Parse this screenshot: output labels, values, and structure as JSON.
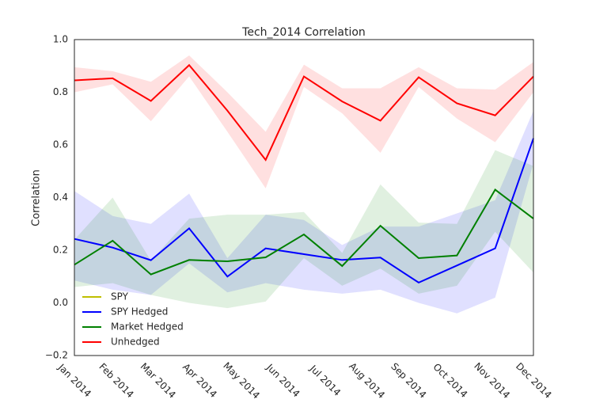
{
  "chart_data": {
    "type": "line",
    "title": "Tech_2014 Correlation",
    "y_label": "Correlation",
    "x": [
      0,
      1,
      2,
      3,
      4,
      5,
      6,
      7,
      8,
      9,
      10,
      11,
      12
    ],
    "xlim": [
      0,
      12
    ],
    "xticks": [
      {
        "value": 0,
        "label": "Jan 2014"
      },
      {
        "value": 1.09,
        "label": "Feb 2014"
      },
      {
        "value": 2.18,
        "label": "Mar 2014"
      },
      {
        "value": 3.27,
        "label": "Apr 2014"
      },
      {
        "value": 4.36,
        "label": "May 2014"
      },
      {
        "value": 5.45,
        "label": "Jun 2014"
      },
      {
        "value": 6.55,
        "label": "Jul 2014"
      },
      {
        "value": 7.64,
        "label": "Aug 2014"
      },
      {
        "value": 8.73,
        "label": "Sep 2014"
      },
      {
        "value": 9.82,
        "label": "Oct 2014"
      },
      {
        "value": 10.91,
        "label": "Nov 2014"
      },
      {
        "value": 12,
        "label": "Dec 2014"
      }
    ],
    "ylim": [
      -0.2,
      1.0
    ],
    "yticks": [
      {
        "value": -0.2,
        "label": "−0.2"
      },
      {
        "value": 0,
        "label": "0.0"
      },
      0.2,
      0.4,
      0.6,
      0.8,
      {
        "value": 1.0,
        "label": "1.0"
      }
    ],
    "grid": false,
    "legend": "lower left",
    "series": [
      {
        "name": "SPY",
        "color": "#bfbf00",
        "values": [
          null,
          null,
          null,
          null,
          null,
          null,
          null,
          null,
          null,
          null,
          null,
          null,
          null
        ]
      },
      {
        "name": "SPY Hedged",
        "color": "#0000ff",
        "values": [
          0.243,
          0.21,
          0.162,
          0.283,
          0.1,
          0.207,
          0.185,
          0.163,
          0.172,
          0.077,
          0.142,
          0.207,
          0.625
        ],
        "upper": [
          0.425,
          0.33,
          0.3,
          0.415,
          0.17,
          0.335,
          0.315,
          0.22,
          0.29,
          0.29,
          0.34,
          0.39,
          0.73
        ],
        "lower": [
          0.085,
          0.05,
          0.03,
          0.15,
          0.04,
          0.075,
          0.05,
          0.035,
          0.05,
          0.0,
          -0.04,
          0.02,
          0.53
        ]
      },
      {
        "name": "Market Hedged",
        "color": "#008000",
        "values": [
          0.145,
          0.236,
          0.108,
          0.163,
          0.158,
          0.173,
          0.26,
          0.14,
          0.293,
          0.17,
          0.18,
          0.43,
          0.32
        ],
        "upper": [
          0.24,
          0.4,
          0.16,
          0.32,
          0.335,
          0.335,
          0.345,
          0.19,
          0.45,
          0.305,
          0.3,
          0.58,
          0.52
        ],
        "lower": [
          0.06,
          0.075,
          0.03,
          0.0,
          -0.02,
          0.005,
          0.17,
          0.065,
          0.13,
          0.035,
          0.065,
          0.27,
          0.115
        ]
      },
      {
        "name": "Unhedged",
        "color": "#ff0000",
        "values": [
          0.845,
          0.853,
          0.767,
          0.903,
          0.73,
          0.543,
          0.86,
          0.765,
          0.692,
          0.857,
          0.758,
          0.712,
          0.86
        ],
        "upper": [
          0.895,
          0.88,
          0.84,
          0.94,
          0.8,
          0.65,
          0.905,
          0.815,
          0.815,
          0.895,
          0.815,
          0.81,
          0.915
        ],
        "lower": [
          0.8,
          0.83,
          0.69,
          0.86,
          0.65,
          0.435,
          0.82,
          0.72,
          0.57,
          0.82,
          0.7,
          0.61,
          0.8
        ]
      }
    ]
  }
}
